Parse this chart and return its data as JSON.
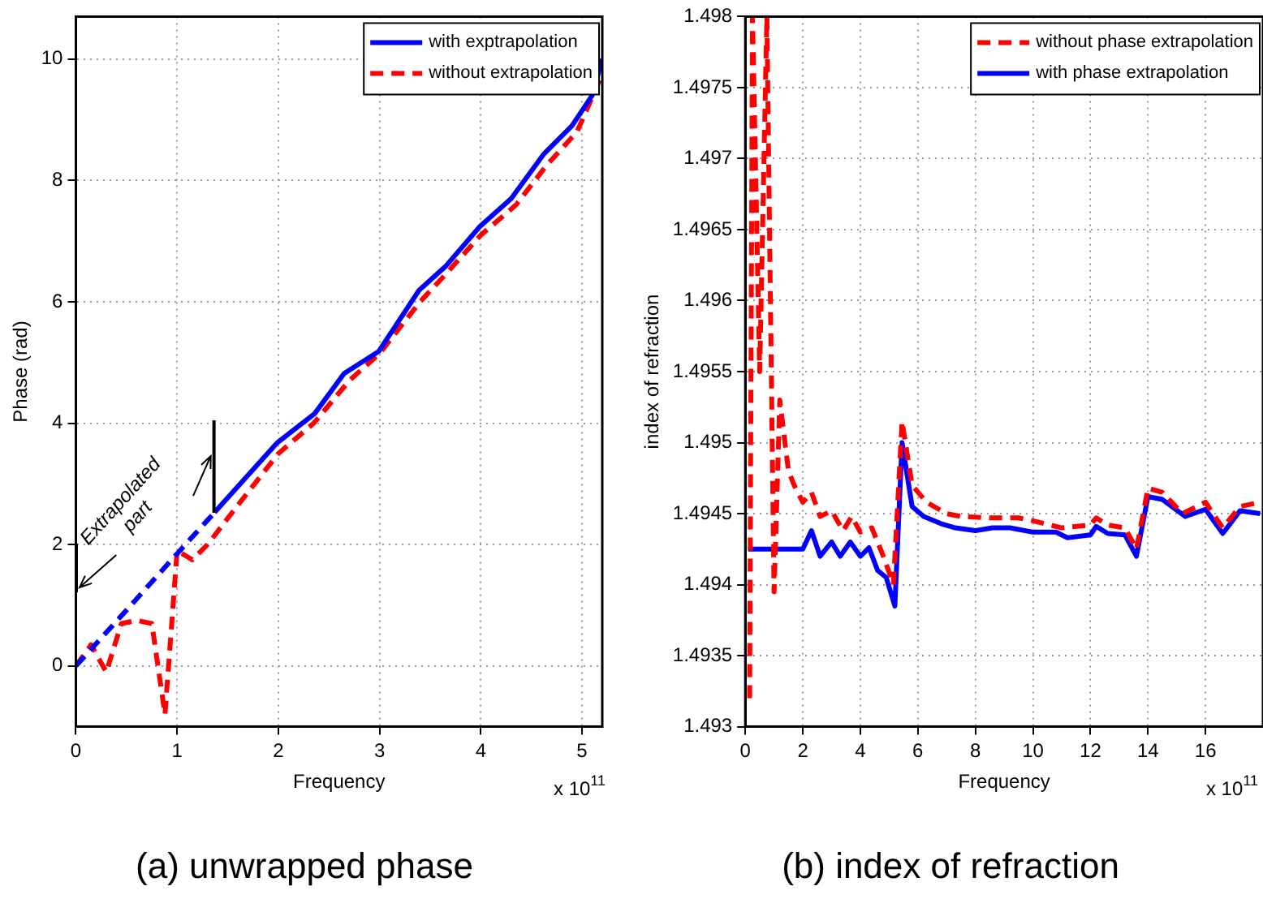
{
  "chart_data": [
    {
      "type": "line",
      "title": "(a) unwrapped phase",
      "xlabel": "Frequency",
      "ylabel": "Phase (rad)",
      "xlim": [
        0,
        5.2
      ],
      "xticks": [
        0,
        1,
        2,
        3,
        4,
        5
      ],
      "ylim": [
        -1,
        10.7
      ],
      "yticks": [
        0,
        2,
        4,
        6,
        8,
        10
      ],
      "grid": true,
      "legend": "top right",
      "annotations": [
        "x 10$^{11}$",
        "Extrapolated part"
      ],
      "series": [
        {
          "color": "#0000ff",
          "line_style": "dashed",
          "x": [
            0,
            0.5,
            1.0,
            1.37
          ],
          "values": [
            0,
            0.92,
            1.85,
            2.53
          ]
        },
        {
          "name": "with exptrapolation",
          "color": "#0000ff",
          "line_style": "solid",
          "x": [
            1.37,
            1.99,
            2.36,
            2.65,
            2.99,
            3.39,
            3.65,
            3.99,
            4.3,
            4.62,
            4.9,
            5.1,
            5.2
          ],
          "values": [
            2.53,
            3.68,
            4.16,
            4.82,
            5.18,
            6.19,
            6.58,
            7.24,
            7.7,
            8.43,
            8.9,
            9.4,
            10.0
          ]
        },
        {
          "name": "without extrapolation",
          "color": "#ff0000",
          "line_style": "dashed",
          "x": [
            0,
            0.15,
            0.3,
            0.45,
            0.6,
            0.75,
            0.88,
            1.0,
            1.15,
            1.3,
            1.6,
            2.0,
            2.35,
            2.7,
            3.0,
            3.4,
            3.65,
            4.0,
            4.35,
            4.65,
            4.95,
            5.2
          ],
          "values": [
            0,
            0.35,
            -0.1,
            0.7,
            0.75,
            0.7,
            -0.8,
            1.9,
            1.75,
            2.0,
            2.65,
            3.5,
            4.0,
            4.7,
            5.15,
            6.0,
            6.45,
            7.1,
            7.6,
            8.25,
            8.8,
            9.75
          ]
        }
      ]
    },
    {
      "type": "line",
      "title": "(b) index of refraction",
      "xlabel": "Frequency",
      "ylabel": "index of refraction",
      "xlim": [
        0,
        18
      ],
      "xticks": [
        0,
        2,
        4,
        6,
        8,
        10,
        12,
        14,
        16
      ],
      "ylim": [
        1.493,
        1.498
      ],
      "yticks": [
        1.493,
        1.4935,
        1.494,
        1.4945,
        1.495,
        1.4955,
        1.496,
        1.4965,
        1.497,
        1.4975,
        1.498
      ],
      "grid": true,
      "legend": "top right",
      "annotations": [
        "x 10$^{11}$"
      ],
      "series": [
        {
          "name": "without phase extrapolation",
          "color": "#ff0000",
          "line_style": "dashed",
          "x": [
            0.15,
            0.25,
            0.5,
            0.75,
            1.0,
            1.2,
            1.5,
            1.7,
            2.0,
            2.3,
            2.6,
            3.0,
            3.4,
            3.7,
            4.0,
            4.4,
            4.8,
            5.15,
            5.45,
            5.8,
            6.3,
            7,
            7.5,
            8.5,
            9.5,
            10,
            11,
            12,
            12.2,
            12.6,
            13.2,
            13.6,
            14,
            14.5,
            15.2,
            16,
            16.6,
            17.2,
            17.9
          ],
          "values": [
            1.4932,
            1.498,
            1.4955,
            1.498,
            1.49395,
            1.4953,
            1.4948,
            1.4947,
            1.49458,
            1.49465,
            1.49448,
            1.49452,
            1.49438,
            1.49448,
            1.49437,
            1.4944,
            1.4942,
            1.494,
            1.49515,
            1.4947,
            1.49458,
            1.4945,
            1.49448,
            1.49447,
            1.49447,
            1.49445,
            1.4944,
            1.49442,
            1.49447,
            1.49442,
            1.4944,
            1.49425,
            1.49468,
            1.49465,
            1.4945,
            1.49458,
            1.4944,
            1.49455,
            1.49458
          ]
        },
        {
          "name": "with phase extrapolation",
          "color": "#0000ff",
          "line_style": "solid",
          "x": [
            0.1,
            2.0,
            2.3,
            2.6,
            3.0,
            3.3,
            3.65,
            4.0,
            4.3,
            4.6,
            4.9,
            5.2,
            5.45,
            5.8,
            6.2,
            6.8,
            7.3,
            8,
            8.6,
            9.2,
            10,
            10.8,
            11.2,
            12,
            12.2,
            12.6,
            13.2,
            13.6,
            14,
            14.5,
            15.3,
            16,
            16.6,
            17.2,
            17.9
          ],
          "values": [
            1.49425,
            1.49425,
            1.49438,
            1.4942,
            1.4943,
            1.4942,
            1.4943,
            1.4942,
            1.49426,
            1.4941,
            1.49405,
            1.49385,
            1.495,
            1.49455,
            1.49448,
            1.49443,
            1.4944,
            1.49438,
            1.4944,
            1.4944,
            1.49437,
            1.49437,
            1.49433,
            1.49435,
            1.49441,
            1.49436,
            1.49435,
            1.4942,
            1.49462,
            1.4946,
            1.49448,
            1.49453,
            1.49436,
            1.49452,
            1.4945
          ]
        }
      ]
    }
  ]
}
